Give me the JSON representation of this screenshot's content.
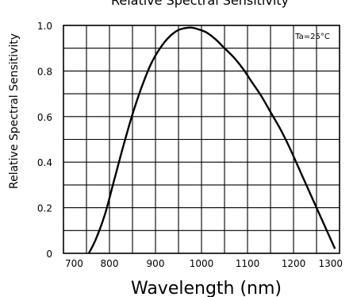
{
  "chart_data": {
    "type": "line",
    "title": "Relative Spectral Sensitivity",
    "xlabel": "Wavelength (nm)",
    "ylabel": "Relative Spectral Sensitivity",
    "xlim": [
      700,
      1300
    ],
    "ylim": [
      0,
      1.0
    ],
    "x_ticks": [
      "700",
      "800",
      "900",
      "1000",
      "1100",
      "1200",
      "1300"
    ],
    "y_ticks": [
      "0",
      "0.2",
      "0.4",
      "0.6",
      "0.8",
      "1.0"
    ],
    "grid": true,
    "annotation": "Ta=25°C",
    "series": [
      {
        "x": [
          755,
          770,
          790,
          810,
          830,
          850,
          870,
          890,
          910,
          930,
          950,
          970,
          980,
          990,
          1010,
          1030,
          1050,
          1070,
          1090,
          1110,
          1130,
          1150,
          1170,
          1190,
          1210,
          1230,
          1250,
          1270,
          1290
        ],
        "y": [
          0.0,
          0.06,
          0.17,
          0.32,
          0.47,
          0.61,
          0.73,
          0.83,
          0.9,
          0.95,
          0.98,
          0.99,
          0.99,
          0.985,
          0.97,
          0.94,
          0.9,
          0.86,
          0.81,
          0.75,
          0.69,
          0.62,
          0.55,
          0.47,
          0.38,
          0.29,
          0.2,
          0.11,
          0.02
        ]
      }
    ]
  }
}
